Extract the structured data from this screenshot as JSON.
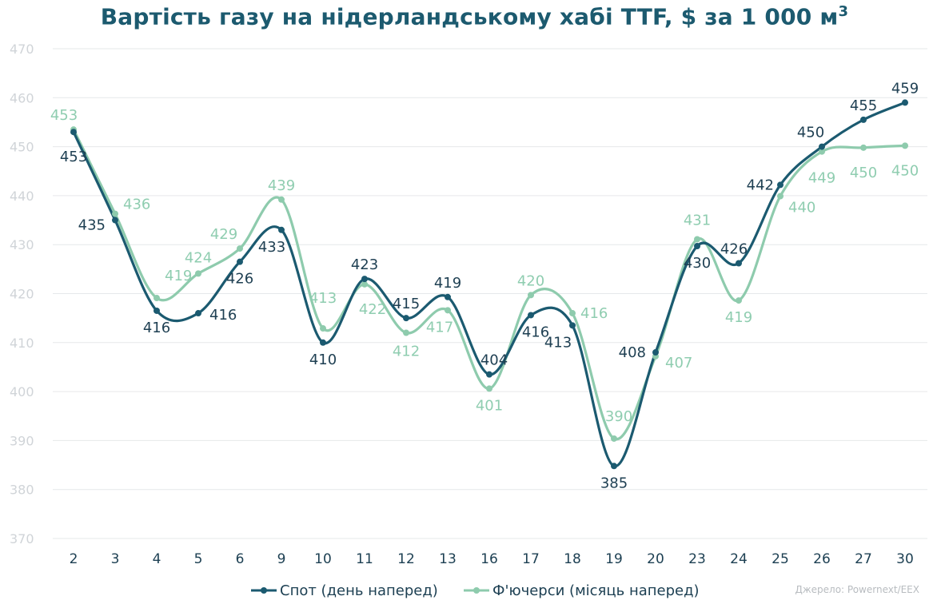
{
  "title_main": "Вартість газу на нідерландському хабі TTF, $ за 1 000 м",
  "title_sup": "3",
  "source": "Джерело: Powernext/EEX",
  "colors": {
    "spot": "#1b5a70",
    "futures": "#8ecbad",
    "grid": "#e6e8ea"
  },
  "chart_data": {
    "type": "line",
    "categories": [
      "2",
      "3",
      "4",
      "5",
      "6",
      "9",
      "10",
      "11",
      "12",
      "13",
      "16",
      "17",
      "18",
      "19",
      "20",
      "23",
      "24",
      "25",
      "26",
      "27",
      "30"
    ],
    "ylim": [
      370,
      470
    ],
    "yticks": [
      470,
      460,
      450,
      440,
      430,
      420,
      410,
      400,
      390,
      380,
      370
    ],
    "grid": true,
    "legend_position": "bottom",
    "series": [
      {
        "name": "Спот (день наперед)",
        "values": [
          453,
          435,
          416.5,
          416,
          426.5,
          433,
          410,
          423,
          415,
          419.3,
          403.5,
          415.6,
          413.5,
          384.8,
          408,
          429.7,
          426.2,
          442.2,
          450,
          455.5,
          459
        ],
        "labels": [
          "453",
          "435",
          "416",
          "416",
          "426",
          "433",
          "410",
          "423",
          "415",
          "419",
          "404",
          "416",
          "413",
          "385",
          "408",
          "430",
          "426",
          "442",
          "450",
          "455",
          "459"
        ]
      },
      {
        "name": "Ф'ючерси (місяць наперед)",
        "values": [
          453.5,
          436.3,
          419.1,
          424.1,
          429.2,
          439.2,
          412.9,
          421.9,
          412,
          416.6,
          400.6,
          419.7,
          416,
          390.4,
          407.2,
          431.1,
          418.6,
          439.9,
          449,
          449.8,
          450.2
        ],
        "labels": [
          "453",
          "436",
          "419",
          "424",
          "429",
          "439",
          "413",
          "422",
          "412",
          "417",
          "401",
          "420",
          "416",
          "390",
          "407",
          "431",
          "419",
          "440",
          "449",
          "450",
          "450"
        ]
      }
    ]
  }
}
